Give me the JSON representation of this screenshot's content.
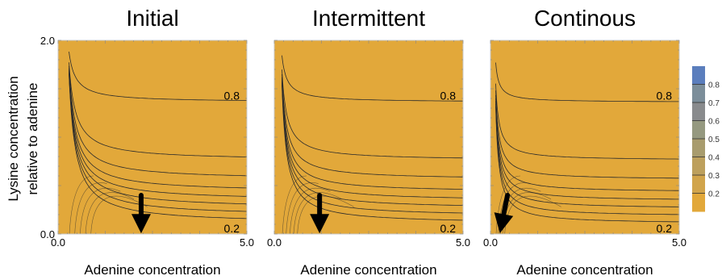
{
  "figure": {
    "ylabel_line1": "Lysine concentration",
    "ylabel_line2": "relative to adenine"
  },
  "colors": {
    "level_fills": [
      "#e2a83a",
      "#d1a44b",
      "#bda05d",
      "#a89c6e",
      "#959980",
      "#898b8d",
      "#7c8e9a",
      "#5b7ebd"
    ],
    "contour_line": "#2b2b2b",
    "frame": "#c8c8c8",
    "arrow": "#000000"
  },
  "chart_data": [
    {
      "type": "contour",
      "title": "Initial",
      "xlabel": "Adenine concentration",
      "ylabel": "",
      "xlim": [
        0.0,
        5.0
      ],
      "ylim": [
        0.0,
        2.0
      ],
      "x_ticks": [
        "0.0",
        "5.0"
      ],
      "y_ticks": [
        "0.0",
        "2.0"
      ],
      "contour_labels": [
        {
          "text": "0.8",
          "x": 4.6,
          "y": 1.43
        },
        {
          "text": "0.2",
          "x": 4.6,
          "y": 0.06
        }
      ],
      "arrow": {
        "from": [
          2.2,
          0.4
        ],
        "to": [
          2.2,
          0.04
        ]
      }
    },
    {
      "type": "contour",
      "title": "Intermittent",
      "xlabel": "Adenine concentration",
      "ylabel": "",
      "xlim": [
        0.0,
        5.0
      ],
      "ylim": [
        0.0,
        2.0
      ],
      "x_ticks": [
        "0.0",
        "5.0"
      ],
      "y_ticks": [],
      "contour_labels": [
        {
          "text": "0.8",
          "x": 4.6,
          "y": 1.43
        },
        {
          "text": "0.2",
          "x": 4.6,
          "y": 0.06
        }
      ],
      "arrow": {
        "from": [
          1.2,
          0.4
        ],
        "to": [
          1.2,
          0.04
        ]
      }
    },
    {
      "type": "contour",
      "title": "Continous",
      "xlabel": "Adenine concentration",
      "ylabel": "",
      "xlim": [
        0.0,
        5.0
      ],
      "ylim": [
        0.0,
        2.0
      ],
      "x_ticks": [
        "0.0",
        "5.0"
      ],
      "y_ticks": [],
      "contour_labels": [
        {
          "text": "0.8",
          "x": 4.6,
          "y": 1.43
        },
        {
          "text": "0.2",
          "x": 4.6,
          "y": 0.06
        }
      ],
      "arrow": {
        "from": [
          0.45,
          0.4
        ],
        "to": [
          0.3,
          0.04
        ]
      }
    }
  ],
  "legend": {
    "type": "colorbar",
    "tick_labels": [
      "0.8",
      "0.7",
      "0.6",
      "0.5",
      "0.4",
      "0.3",
      "0.2"
    ]
  }
}
